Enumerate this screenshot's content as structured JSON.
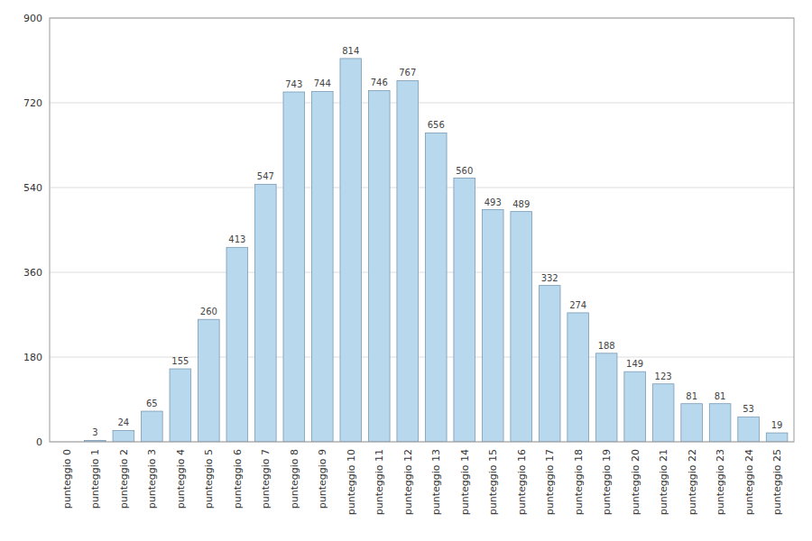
{
  "chart_data": {
    "type": "bar",
    "categories": [
      "punteggio 0",
      "punteggio 1",
      "punteggio 2",
      "punteggio 3",
      "punteggio 4",
      "punteggio 5",
      "punteggio 6",
      "punteggio 7",
      "punteggio 8",
      "punteggio 9",
      "punteggio 10",
      "punteggio 11",
      "punteggio 12",
      "punteggio 13",
      "punteggio 14",
      "punteggio 15",
      "punteggio 16",
      "punteggio 17",
      "punteggio 18",
      "punteggio 19",
      "punteggio 20",
      "punteggio 21",
      "punteggio 22",
      "punteggio 23",
      "punteggio 24",
      "punteggio 25"
    ],
    "values": [
      0,
      3,
      24,
      65,
      155,
      260,
      413,
      547,
      743,
      744,
      814,
      746,
      767,
      656,
      560,
      493,
      489,
      332,
      274,
      188,
      149,
      123,
      81,
      81,
      53,
      19
    ],
    "value_labels": [
      null,
      "3",
      "24",
      "65",
      "155",
      "260",
      "413",
      "547",
      "743",
      "744",
      "814",
      "746",
      "767",
      "656",
      "560",
      "493",
      "489",
      "332",
      "274",
      "188",
      "149",
      "123",
      "81",
      "81",
      "53",
      "19"
    ],
    "color": "#b8d8ed",
    "ylim": [
      0,
      900
    ],
    "yticks": [
      0,
      180,
      360,
      540,
      720,
      900
    ],
    "grid": true,
    "data_labels": true
  }
}
